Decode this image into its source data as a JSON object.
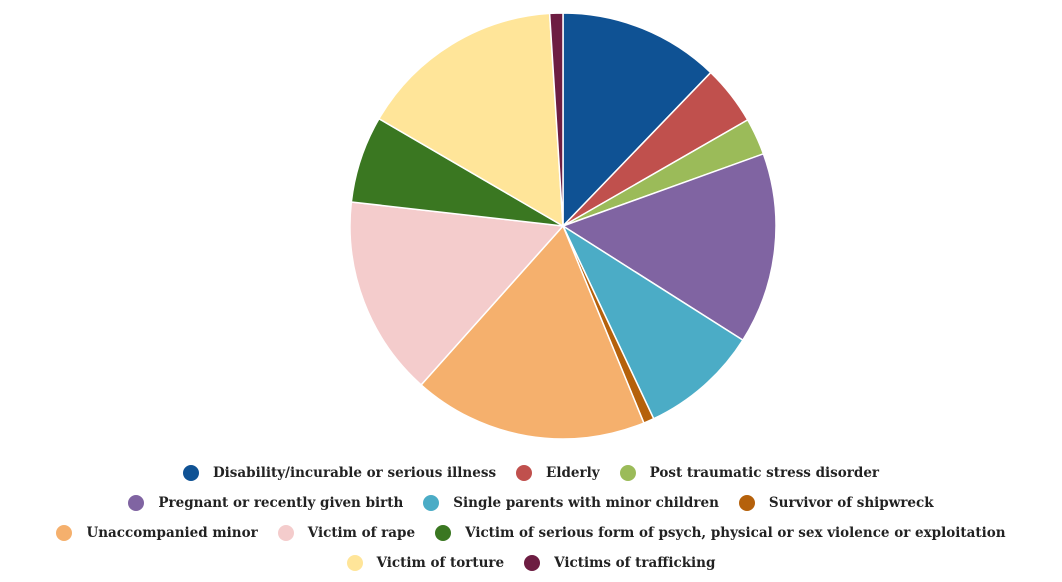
{
  "chart_data": {
    "type": "pie",
    "title": "",
    "legend_position": "bottom",
    "series": [
      {
        "name": "Disability/incurable or serious illness",
        "value": 12.2,
        "color": "#0f5294"
      },
      {
        "name": "Elderly",
        "value": 4.5,
        "color": "#c0504d"
      },
      {
        "name": "Post traumatic stress disorder",
        "value": 2.8,
        "color": "#9bbb59"
      },
      {
        "name": "Pregnant or recently given birth",
        "value": 14.5,
        "color": "#8064a2"
      },
      {
        "name": "Single parents with minor children",
        "value": 9.0,
        "color": "#4bacc6"
      },
      {
        "name": "Survivor of shipwreck",
        "value": 0.8,
        "color": "#b5610b"
      },
      {
        "name": "Unaccompanied minor",
        "value": 17.8,
        "color": "#f5b06d"
      },
      {
        "name": "Victim of rape",
        "value": 15.2,
        "color": "#f4cccc"
      },
      {
        "name": "Victim of serious form of psych, physical or sex violence or exploitation",
        "value": 6.6,
        "color": "#3a7721"
      },
      {
        "name": "Victim of torture",
        "value": 15.6,
        "color": "#ffe599"
      },
      {
        "name": "Victims of trafficking",
        "value": 1.0,
        "color": "#6d1d42"
      }
    ]
  }
}
